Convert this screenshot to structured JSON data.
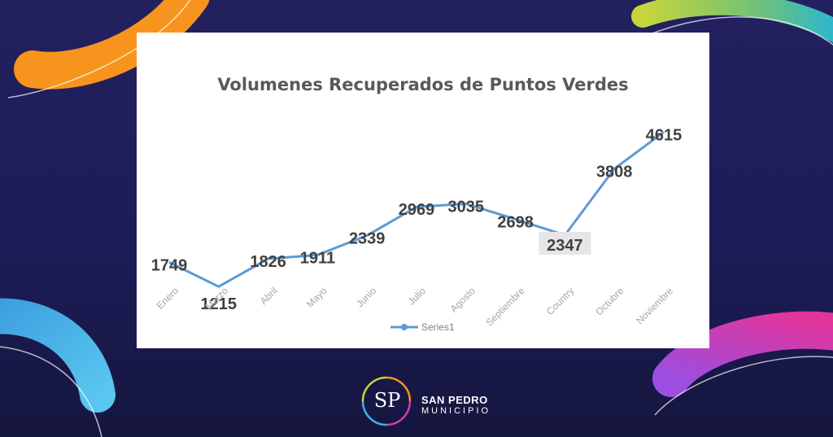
{
  "chart_data": {
    "type": "line",
    "title": "Volumenes Recuperados de Puntos Verdes",
    "categories": [
      "Enero",
      "Marzo",
      "Abril",
      "Mayo",
      "Junio",
      "Julio",
      "Agosto",
      "Septiembre",
      "Country",
      "Octubre",
      "Noviembre"
    ],
    "series": [
      {
        "name": "Series1",
        "values": [
          1749,
          1215,
          1826,
          1911,
          2339,
          2969,
          3035,
          2698,
          2347,
          3808,
          4615
        ]
      }
    ],
    "xlabel": "",
    "ylabel": "",
    "ylim": [
      0,
      5000
    ],
    "grid": false,
    "legend_position": "bottom",
    "line_color": "#5b9bd5",
    "label_color": "#404040"
  },
  "branding": {
    "initials": "SP",
    "name": "SAN PEDRO",
    "sub": "MUNICIPIO"
  },
  "colors": {
    "background": "#1f1e5c",
    "card": "#ffffff",
    "orange": "#f7941d",
    "yellow_green": "#c6d63a",
    "teal": "#29b6d2",
    "cyan": "#3fb3e6",
    "pink": "#d63aa8",
    "magenta": "#9b4ee0"
  }
}
